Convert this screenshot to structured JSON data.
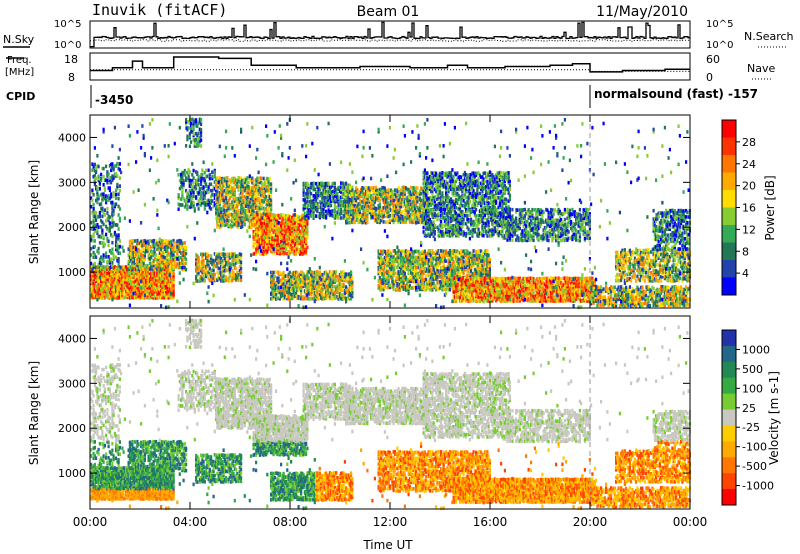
{
  "header": {
    "station": "Inuvik (fitACF)",
    "beam": "Beam 01",
    "date": "11/May/2010"
  },
  "strips": {
    "nsky_label": "N.Sky",
    "nsky_ticks": [
      "10^5",
      "10^0"
    ],
    "nsearch_label": "N.Search",
    "nsearch_ticks": [
      "10^5",
      "10^0"
    ],
    "freq_label": [
      "Freq.",
      "[MHz]"
    ],
    "freq_ticks": [
      "18",
      "8"
    ],
    "nave_label": "Nave",
    "nave_ticks": [
      "60",
      "0"
    ],
    "cpid_label": "CPID",
    "cpid_start": "-3450",
    "cpid_change": "normalsound (fast) -157",
    "cpid_change_hour": 20.0
  },
  "colorbars": {
    "power": {
      "label": "Power [dB]",
      "ticks": [
        "28",
        "24",
        "20",
        "16",
        "12",
        "8",
        "4"
      ],
      "colors": [
        "#ff0000",
        "#ff3300",
        "#ff7700",
        "#ffaa00",
        "#ffdd00",
        "#88cc33",
        "#33aa55",
        "#227755",
        "#2244aa",
        "#0000ff"
      ]
    },
    "velocity": {
      "label": "Velocity [m s-1]",
      "ticks": [
        "1000",
        "500",
        "100",
        "25",
        "-25",
        "-100",
        "-500",
        "-1000"
      ],
      "colors": [
        "#2233aa",
        "#226688",
        "#228855",
        "#33aa44",
        "#77cc33",
        "#c8c8c0",
        "#ffcc00",
        "#ffaa00",
        "#ff7700",
        "#ff4400",
        "#ff0000"
      ]
    }
  },
  "chart_data": [
    {
      "type": "heatmap",
      "panel": "power",
      "ylabel": "Slant Range [km]",
      "y_ticks": [
        "1000",
        "2000",
        "3000",
        "4000"
      ],
      "ylim": [
        200,
        4500
      ],
      "xlim": [
        0,
        24
      ],
      "x_tick_labels": [
        "00:00",
        "04:00",
        "08:00",
        "12:00",
        "16:00",
        "20:00",
        "00:00"
      ]
    },
    {
      "type": "heatmap",
      "panel": "velocity",
      "ylabel": "Slant Range [km]",
      "y_ticks": [
        "1000",
        "2000",
        "3000",
        "4000"
      ],
      "ylim": [
        200,
        4500
      ],
      "xlim": [
        0,
        24
      ],
      "x_tick_labels": [
        "00:00",
        "04:00",
        "08:00",
        "12:00",
        "16:00",
        "20:00",
        "00:00"
      ],
      "xlabel": "Time UT"
    }
  ]
}
